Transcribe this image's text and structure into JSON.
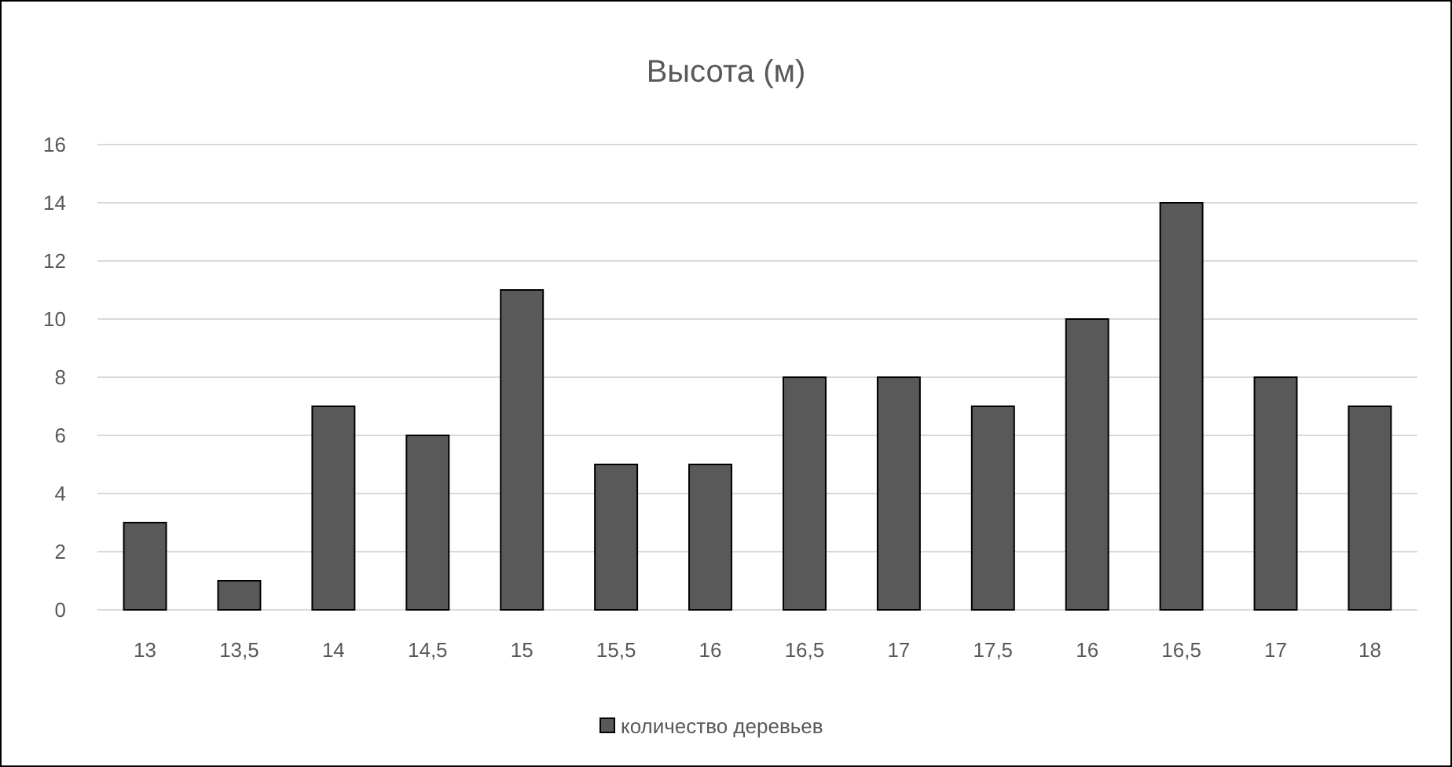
{
  "chart_data": {
    "type": "bar",
    "title": "Высота (м)",
    "categories": [
      "13",
      "13,5",
      "14",
      "14,5",
      "15",
      "15,5",
      "16",
      "16,5",
      "17",
      "17,5",
      "16",
      "16,5",
      "17",
      "18"
    ],
    "series": [
      {
        "name": "количество деревьев",
        "color": "#595959",
        "values": [
          3,
          1,
          7,
          6,
          11,
          5,
          5,
          8,
          8,
          7,
          10,
          14,
          8,
          7
        ]
      }
    ],
    "ylim": [
      0,
      16
    ],
    "yticks": [
      0,
      2,
      4,
      6,
      8,
      10,
      12,
      14,
      16
    ],
    "grid": "y",
    "legend": "bottom"
  }
}
